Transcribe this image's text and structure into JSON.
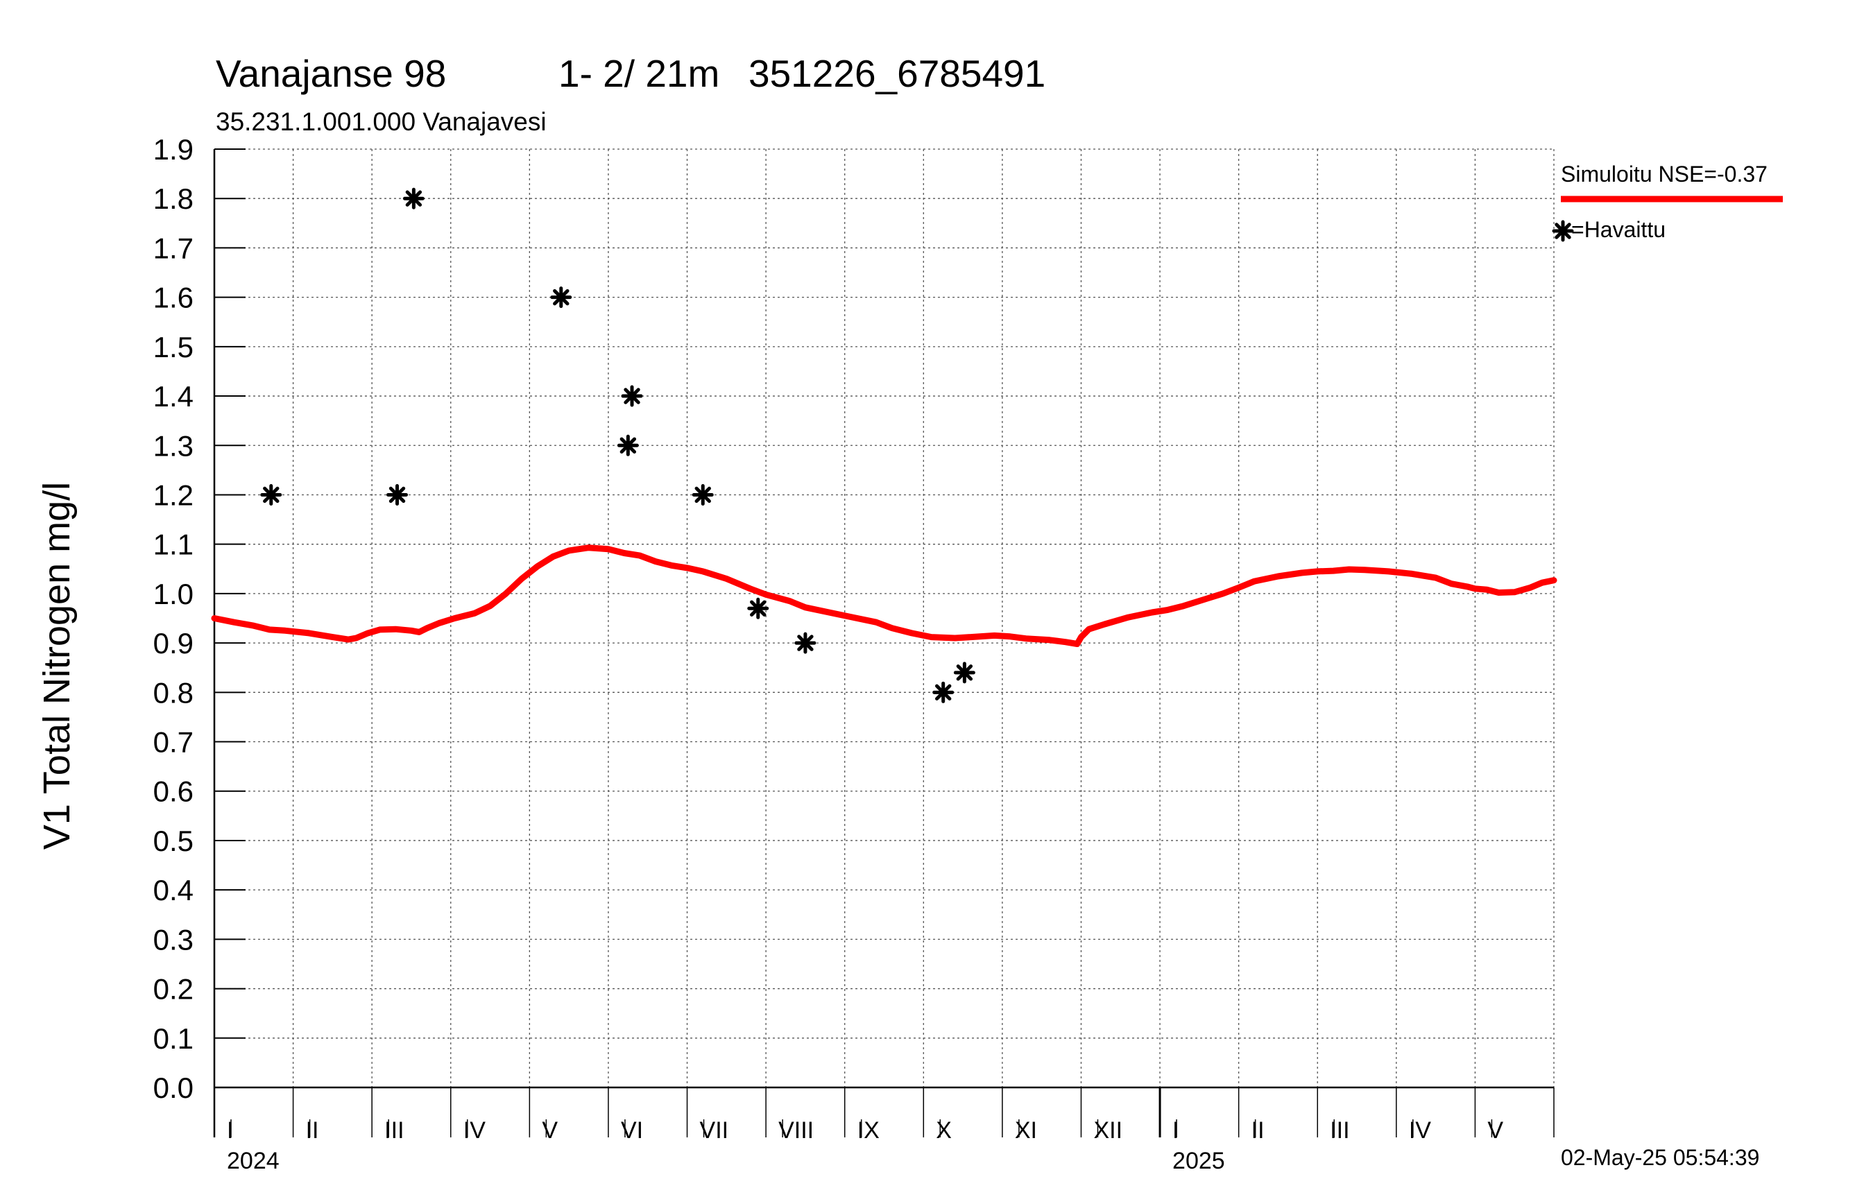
{
  "header": {
    "station": "Vanajanse 98",
    "depth": "1- 2/ 21m",
    "coords": "351226_6785491",
    "subtitle": "35.231.1.001.000 Vanajavesi"
  },
  "legend": {
    "simulated_label": "Simuloitu NSE=-0.37",
    "observed_label": "=Havaittu",
    "simulated_color": "#ff0000",
    "observed_color": "#000000"
  },
  "timestamp": "02-May-25 05:54:39",
  "chart_data": {
    "type": "line",
    "title": "Vanajanse 98   1- 2/ 21m  351226_6785491",
    "subtitle": "35.231.1.001.000 Vanajavesi",
    "ylabel": "V1 Total Nitrogen mg/l",
    "xlabel": "",
    "ylim": [
      0.0,
      1.9
    ],
    "yticks": [
      "0.0",
      "0.1",
      "0.2",
      "0.3",
      "0.4",
      "0.5",
      "0.6",
      "0.7",
      "0.8",
      "0.9",
      "1.0",
      "1.1",
      "1.2",
      "1.3",
      "1.4",
      "1.5",
      "1.6",
      "1.7",
      "1.8",
      "1.9"
    ],
    "xlim_months": [
      0,
      17
    ],
    "month_labels": [
      "I",
      "II",
      "III",
      "IV",
      "V",
      "VI",
      "VII",
      "VIII",
      "IX",
      "X",
      "XI",
      "XII",
      "I",
      "II",
      "III",
      "IV",
      "V"
    ],
    "years": [
      {
        "label": "2024",
        "month_index": 0
      },
      {
        "label": "2025",
        "month_index": 12
      }
    ],
    "grid": true,
    "legend_position": "top-right",
    "series": [
      {
        "name": "Simuloitu NSE=-0.37",
        "kind": "line",
        "color": "#ff0000",
        "points": [
          [
            0.0,
            0.95
          ],
          [
            0.25,
            0.942
          ],
          [
            0.5,
            0.935
          ],
          [
            0.7,
            0.927
          ],
          [
            0.9,
            0.925
          ],
          [
            1.2,
            0.92
          ],
          [
            1.5,
            0.912
          ],
          [
            1.7,
            0.907
          ],
          [
            1.8,
            0.91
          ],
          [
            1.95,
            0.92
          ],
          [
            2.1,
            0.927
          ],
          [
            2.3,
            0.928
          ],
          [
            2.5,
            0.925
          ],
          [
            2.6,
            0.922
          ],
          [
            2.7,
            0.93
          ],
          [
            2.85,
            0.94
          ],
          [
            3.05,
            0.95
          ],
          [
            3.3,
            0.96
          ],
          [
            3.5,
            0.975
          ],
          [
            3.7,
            1.0
          ],
          [
            3.9,
            1.03
          ],
          [
            4.1,
            1.055
          ],
          [
            4.3,
            1.075
          ],
          [
            4.5,
            1.087
          ],
          [
            4.75,
            1.093
          ],
          [
            5.0,
            1.09
          ],
          [
            5.2,
            1.082
          ],
          [
            5.4,
            1.077
          ],
          [
            5.6,
            1.065
          ],
          [
            5.8,
            1.057
          ],
          [
            6.0,
            1.052
          ],
          [
            6.2,
            1.045
          ],
          [
            6.5,
            1.03
          ],
          [
            6.8,
            1.01
          ],
          [
            7.0,
            0.998
          ],
          [
            7.3,
            0.985
          ],
          [
            7.5,
            0.972
          ],
          [
            7.8,
            0.962
          ],
          [
            8.1,
            0.952
          ],
          [
            8.4,
            0.942
          ],
          [
            8.6,
            0.93
          ],
          [
            8.85,
            0.92
          ],
          [
            9.1,
            0.912
          ],
          [
            9.4,
            0.91
          ],
          [
            9.6,
            0.912
          ],
          [
            9.9,
            0.915
          ],
          [
            10.1,
            0.913
          ],
          [
            10.3,
            0.909
          ],
          [
            10.6,
            0.906
          ],
          [
            10.8,
            0.902
          ],
          [
            10.95,
            0.898
          ],
          [
            11.0,
            0.912
          ],
          [
            11.1,
            0.928
          ],
          [
            11.3,
            0.938
          ],
          [
            11.6,
            0.952
          ],
          [
            11.9,
            0.962
          ],
          [
            12.1,
            0.967
          ],
          [
            12.3,
            0.975
          ],
          [
            12.6,
            0.99
          ],
          [
            12.8,
            1.0
          ],
          [
            13.0,
            1.012
          ],
          [
            13.2,
            1.025
          ],
          [
            13.5,
            1.035
          ],
          [
            13.8,
            1.042
          ],
          [
            14.0,
            1.045
          ],
          [
            14.2,
            1.046
          ],
          [
            14.4,
            1.049
          ],
          [
            14.6,
            1.048
          ],
          [
            14.9,
            1.045
          ],
          [
            15.2,
            1.04
          ],
          [
            15.5,
            1.032
          ],
          [
            15.7,
            1.02
          ],
          [
            15.9,
            1.014
          ],
          [
            16.0,
            1.01
          ],
          [
            16.15,
            1.008
          ],
          [
            16.3,
            1.002
          ],
          [
            16.5,
            1.003
          ],
          [
            16.7,
            1.012
          ],
          [
            16.85,
            1.022
          ],
          [
            17.0,
            1.027
          ]
        ]
      },
      {
        "name": "Havaittu",
        "kind": "scatter",
        "marker": "asterisk",
        "color": "#000000",
        "points": [
          [
            0.72,
            1.2
          ],
          [
            2.32,
            1.2
          ],
          [
            2.53,
            1.8
          ],
          [
            4.4,
            1.6
          ],
          [
            5.25,
            1.3
          ],
          [
            5.3,
            1.4
          ],
          [
            6.2,
            1.2
          ],
          [
            6.9,
            0.97
          ],
          [
            7.5,
            0.9
          ],
          [
            9.25,
            0.8
          ],
          [
            9.52,
            0.84
          ]
        ]
      }
    ]
  }
}
